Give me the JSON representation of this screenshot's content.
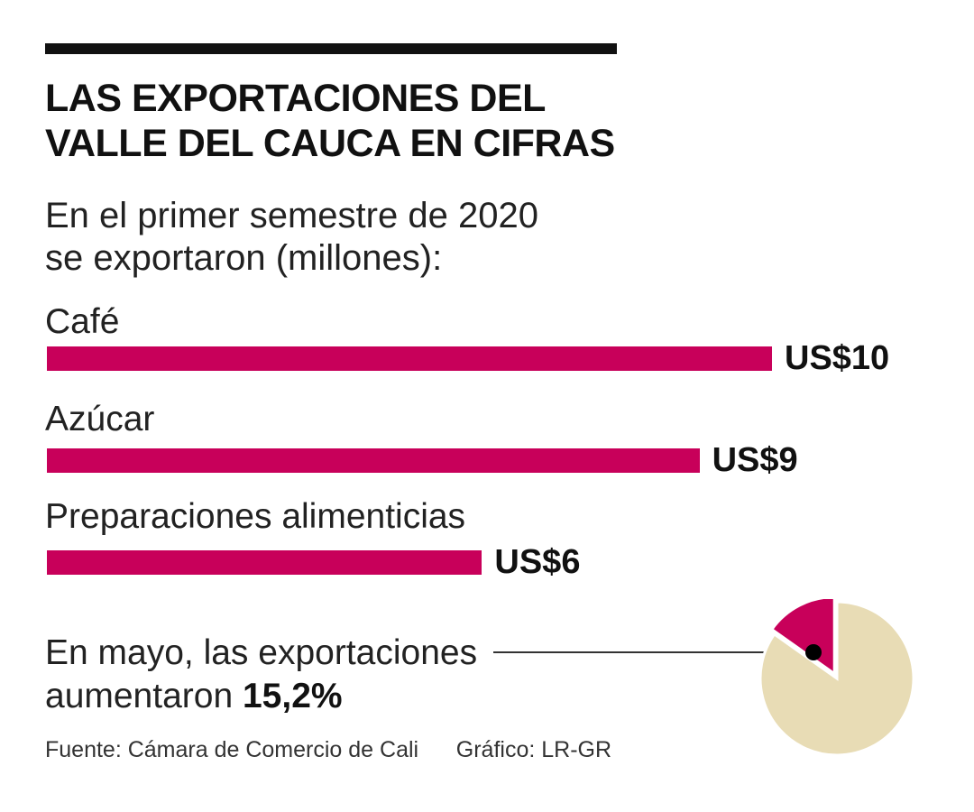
{
  "title_line1": "LAS EXPORTACIONES DEL",
  "title_line2": "VALLE DEL CAUCA EN CIFRAS",
  "subtitle_line1": "En el primer semestre de 2020",
  "subtitle_line2": "se exportaron (millones):",
  "chart_data": [
    {
      "type": "bar",
      "orientation": "horizontal",
      "categories": [
        "Café",
        "Azúcar",
        "Preparaciones alimenticias"
      ],
      "values": [
        10,
        9,
        6
      ],
      "value_labels": [
        "US$10",
        "US$9",
        "US$6"
      ],
      "xlim": [
        0,
        10
      ],
      "grid": false,
      "colors": [
        "#c8005a"
      ]
    },
    {
      "type": "pie",
      "values": [
        15.2,
        84.8
      ],
      "colors": [
        "#c8005a",
        "#e8dcb5"
      ]
    }
  ],
  "note_line1": "En mayo, las exportaciones",
  "note_line2_prefix": "aumentaron ",
  "note_highlight": "15,2%",
  "footer_source": "Fuente: Cámara de Comercio de Cali",
  "footer_credit": "Gráfico: LR-GR"
}
